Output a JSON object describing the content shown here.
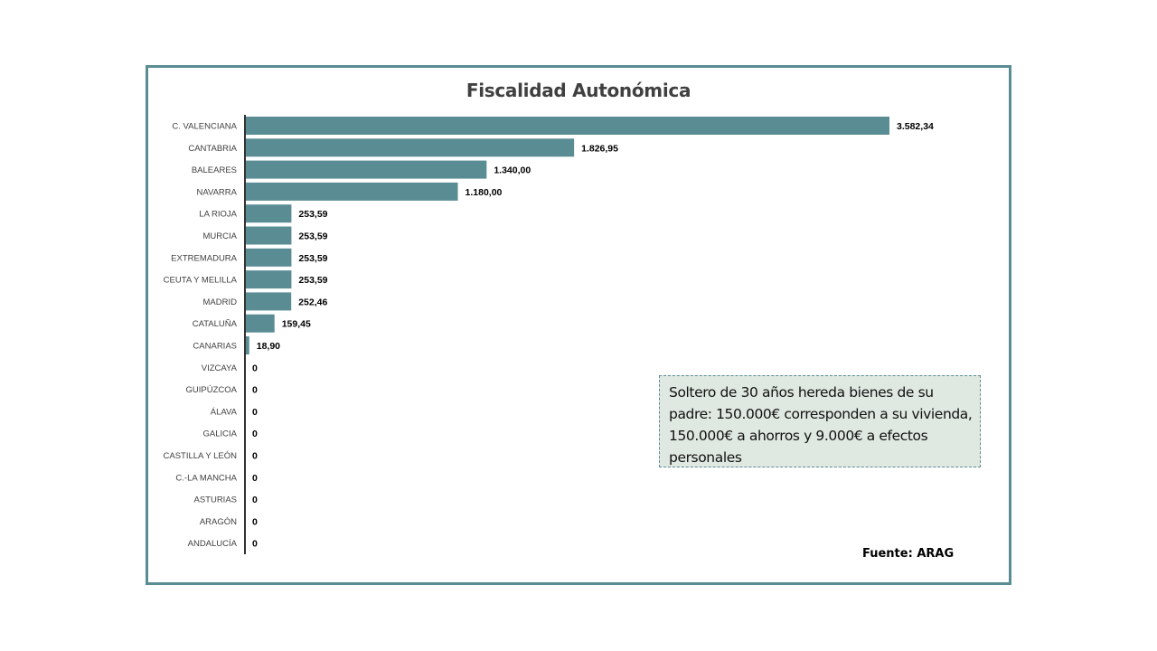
{
  "chart_data": {
    "type": "bar",
    "orientation": "horizontal",
    "title": "Fiscalidad Autonómica",
    "categories": [
      "C. VALENCIANA",
      "CANTABRIA",
      "BALEARES",
      "NAVARRA",
      "LA RIOJA",
      "MURCIA",
      "EXTREMADURA",
      "CEUTA Y MELILLA",
      "MADRID",
      "CATALUÑA",
      "CANARIAS",
      "VIZCAYA",
      "GUIPÚZCOA",
      "ÁLAVA",
      "GALICIA",
      "CASTILLA Y LEÓN",
      "C.-LA MANCHA",
      "ASTURIAS",
      "ARAGÓN",
      "ANDALUCÍA"
    ],
    "values": [
      3582.34,
      1826.95,
      1340.0,
      1180.0,
      253.59,
      253.59,
      253.59,
      253.59,
      252.46,
      159.45,
      18.9,
      0,
      0,
      0,
      0,
      0,
      0,
      0,
      0,
      0
    ],
    "value_labels": [
      "3.582,34",
      "1.826,95",
      "1.340,00",
      "1.180,00",
      "253,59",
      "253,59",
      "253,59",
      "253,59",
      "252,46",
      "159,45",
      "18,90",
      "0",
      "0",
      "0",
      "0",
      "0",
      "0",
      "0",
      "0",
      "0"
    ],
    "xlabel": "",
    "ylabel": "",
    "xlim": [
      0,
      3582.34
    ],
    "grid": false,
    "legend": "none",
    "bar_color": "#5a8c94"
  },
  "annotation": "Soltero de 30 años hereda bienes de su padre: 150.000€ corresponden a su vivienda, 150.000€ a ahorros y 9.000€ a efectos personales",
  "source": "Fuente: ARAG"
}
